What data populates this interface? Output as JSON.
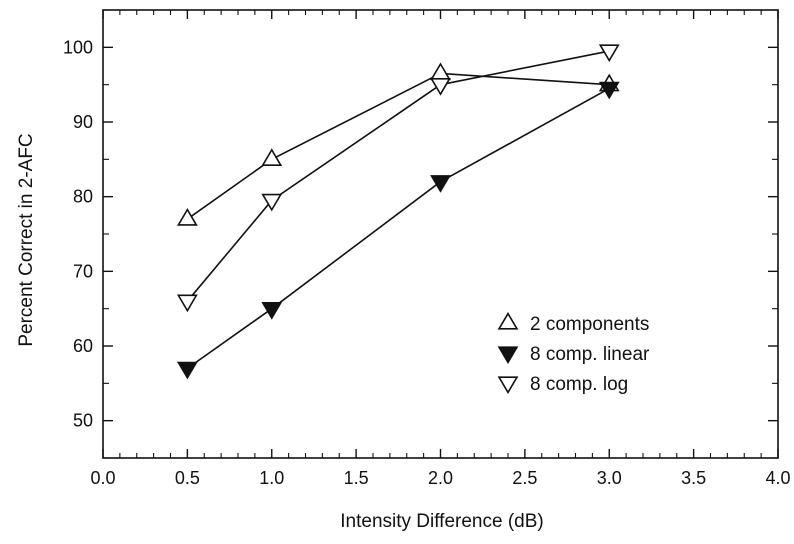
{
  "chart_data": {
    "type": "line",
    "title": "",
    "xlabel": "Intensity Difference (dB)",
    "ylabel": "Percent Correct in 2-AFC",
    "xlim": [
      0.0,
      4.0
    ],
    "ylim": [
      45,
      105
    ],
    "x_ticks": [
      0.0,
      0.5,
      1.0,
      1.5,
      2.0,
      2.5,
      3.0,
      3.5,
      4.0
    ],
    "x_tick_labels": [
      "0.0",
      "0.5",
      "1.0",
      "1.5",
      "2.0",
      "2.5",
      "3.0",
      "3.5",
      "4.0"
    ],
    "y_ticks": [
      50,
      60,
      70,
      80,
      90,
      100
    ],
    "y_tick_labels": [
      "50",
      "60",
      "70",
      "80",
      "90",
      "100"
    ],
    "grid": false,
    "legend_position": "lower-right",
    "series": [
      {
        "name": "2 components",
        "marker": "triangle-up-open",
        "x": [
          0.5,
          1.0,
          2.0,
          3.0
        ],
        "y": [
          77,
          85,
          96.5,
          95
        ]
      },
      {
        "name": "8 comp. linear",
        "marker": "triangle-down-filled",
        "x": [
          0.5,
          1.0,
          2.0,
          3.0
        ],
        "y": [
          57,
          65,
          82,
          94.5
        ]
      },
      {
        "name": "8 comp. log",
        "marker": "triangle-down-open",
        "x": [
          0.5,
          1.0,
          2.0,
          3.0
        ],
        "y": [
          66,
          79.5,
          95,
          99.5
        ]
      }
    ],
    "colors": {
      "line": "#111111",
      "marker_fill_filled": "#111111",
      "marker_fill_open": "#ffffff"
    }
  }
}
